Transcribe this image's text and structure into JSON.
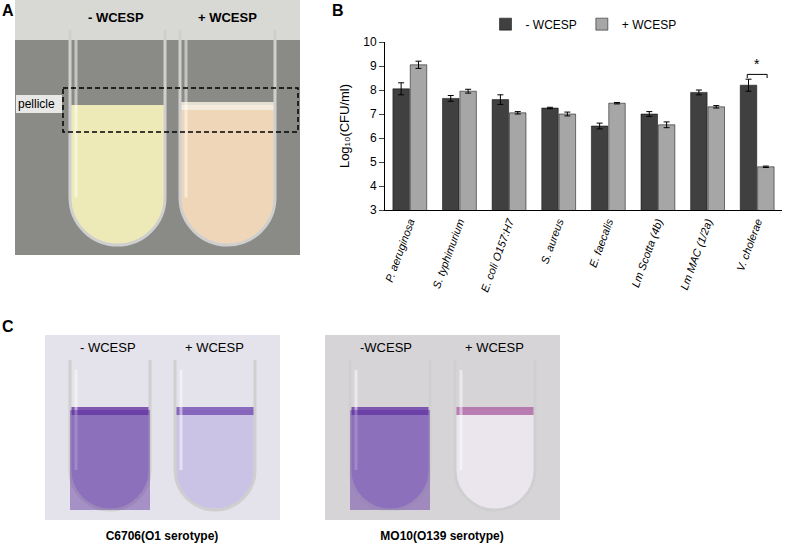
{
  "figure": {
    "panel_labels": [
      "A",
      "B",
      "C"
    ]
  },
  "panel_a": {
    "tubes": [
      "- WCESP",
      "+ WCESP"
    ],
    "region_label": "pellicle"
  },
  "chart_data": {
    "type": "bar",
    "categories": [
      "P. aeruginosa",
      "S. typhimurium",
      "E. coli O157:H7",
      "S. aureus",
      "E. faecalis",
      "Lm Scotta (4b)",
      "Lm MAC (1/2a)",
      "V. cholerae"
    ],
    "series": [
      {
        "name": "- WCESP",
        "color": "#404040",
        "values": [
          8.05,
          7.65,
          7.6,
          7.25,
          6.5,
          7.0,
          7.9,
          8.2
        ],
        "errors": [
          0.25,
          0.12,
          0.2,
          0.03,
          0.12,
          0.1,
          0.1,
          0.25
        ]
      },
      {
        "name": "+ WCESP",
        "color": "#a6a6a6",
        "values": [
          9.05,
          7.95,
          7.05,
          7.0,
          7.45,
          6.55,
          7.3,
          4.8
        ],
        "errors": [
          0.15,
          0.08,
          0.05,
          0.08,
          0.03,
          0.12,
          0.05,
          0.03
        ]
      }
    ],
    "y_label": "Log₁₀(CFU/ml)",
    "ylim": [
      3,
      10
    ],
    "yticks": [
      3,
      4,
      5,
      6,
      7,
      8,
      9,
      10
    ],
    "grid": false,
    "legend": "top",
    "annotations": [
      {
        "text": "*",
        "category": "V. cholerae"
      }
    ]
  },
  "panel_c": {
    "images": [
      {
        "caption": "C6706(O1 serotype)",
        "tubes": [
          "- WCESP",
          "+ WCESP"
        ]
      },
      {
        "caption": "MO10(O139 serotype)",
        "tubes": [
          "-WCESP",
          "+ WCESP"
        ]
      }
    ]
  }
}
